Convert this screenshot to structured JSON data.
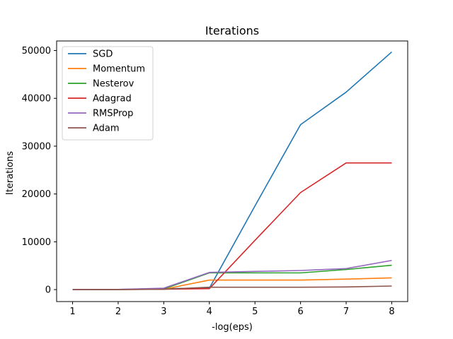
{
  "chart_data": {
    "type": "line",
    "title": "Iterations",
    "xlabel": "-log(eps)",
    "ylabel": "Iterations",
    "x": [
      1,
      2,
      3,
      4,
      5,
      6,
      7,
      8
    ],
    "xticks": [
      "1",
      "2",
      "3",
      "4",
      "5",
      "6",
      "7",
      "8"
    ],
    "xlim": [
      0.65,
      8.35
    ],
    "ylim": [
      -2500,
      52000
    ],
    "yticks": [
      0,
      10000,
      20000,
      30000,
      40000,
      50000
    ],
    "ytick_labels": [
      "0",
      "10000",
      "20000",
      "30000",
      "40000",
      "50000"
    ],
    "grid": false,
    "legend_position": "upper-left",
    "series": [
      {
        "name": "SGD",
        "color": "#1f77b4",
        "values": [
          20,
          40,
          200,
          300,
          17500,
          34500,
          41300,
          49700
        ]
      },
      {
        "name": "Momentum",
        "color": "#ff7f0e",
        "values": [
          10,
          20,
          80,
          2000,
          2000,
          2000,
          2200,
          2450
        ]
      },
      {
        "name": "Nesterov",
        "color": "#2ca02c",
        "values": [
          10,
          20,
          150,
          3500,
          3500,
          3500,
          4200,
          5100
        ]
      },
      {
        "name": "Adagrad",
        "color": "#d62728",
        "values": [
          10,
          20,
          100,
          200,
          10300,
          20300,
          26500,
          26500
        ]
      },
      {
        "name": "RMSProp",
        "color": "#9467bd",
        "values": [
          20,
          40,
          300,
          3600,
          3800,
          4000,
          4400,
          6100
        ]
      },
      {
        "name": "Adam",
        "color": "#8c564b",
        "values": [
          10,
          10,
          80,
          500,
          500,
          500,
          550,
          750
        ]
      }
    ]
  }
}
